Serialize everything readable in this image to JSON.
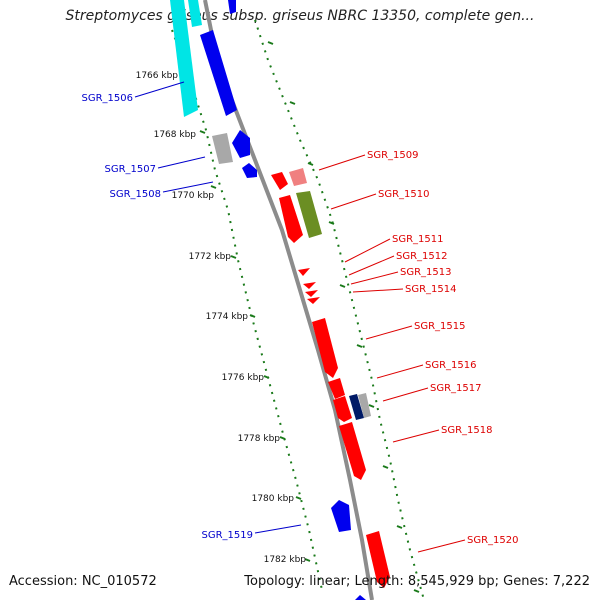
{
  "title": "Streptomyces griseus subsp. griseus NBRC 13350, complete gen...",
  "footer": {
    "accession": "Accession: NC_010572",
    "summary": "Topology: linear; Length: 8,545,929 bp; Genes: 7,222"
  },
  "colors": {
    "backbone": "#8c8c8c",
    "tick": "#1a7a1a",
    "forward": "#ff0000",
    "reverse": "#0000ee",
    "cyan": "#00e5e5",
    "gray": "#a8a8a8",
    "olive": "#6b8e23",
    "navy": "#001a66",
    "label_forward": "#dd0000",
    "label_reverse": "#0000cc"
  },
  "tick_labels": [
    "1766 kbp",
    "1768 kbp",
    "1770 kbp",
    "1772 kbp",
    "1774 kbp",
    "1776 kbp",
    "1778 kbp",
    "1780 kbp",
    "1782 kbp"
  ],
  "gene_labels": {
    "reverse": [
      "SGR_1506",
      "SGR_1507",
      "SGR_1508",
      "SGR_1519"
    ],
    "forward": [
      "SGR_1509",
      "SGR_1510",
      "SGR_1511",
      "SGR_1512",
      "SGR_1513",
      "SGR_1514",
      "SGR_1515",
      "SGR_1516",
      "SGR_1517",
      "SGR_1518",
      "SGR_1520"
    ]
  }
}
